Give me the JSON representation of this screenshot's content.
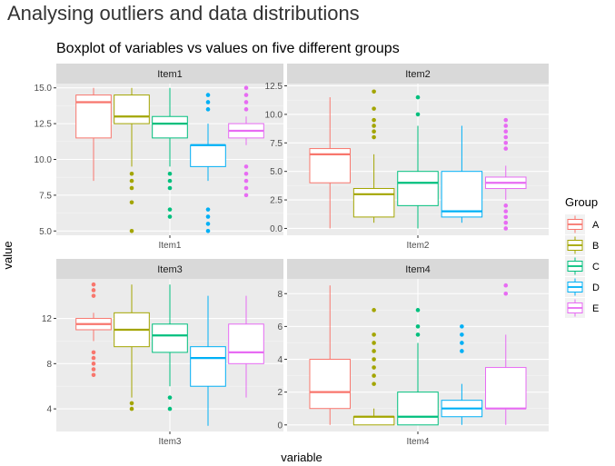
{
  "page_title": "Analysing outliers and data distributions",
  "chart_data": {
    "type": "boxplot",
    "title": "Boxplot of variables vs values on five different groups",
    "xlabel": "variable",
    "ylabel": "value",
    "legend": {
      "title": "Group",
      "placement": "right",
      "entries": [
        "A",
        "B",
        "C",
        "D",
        "E"
      ]
    },
    "colors": {
      "A": "#F8766D",
      "B": "#A3A500",
      "C": "#00BF7D",
      "D": "#00B0F6",
      "E": "#E76BF3"
    },
    "facets": [
      {
        "strip": "Item1",
        "x_tick": "Item1",
        "ylim": [
          4.7,
          15.3
        ],
        "y_ticks": [
          5.0,
          7.5,
          10.0,
          12.5,
          15.0
        ],
        "y_tick_labels": [
          "5.0",
          "7.5",
          "10.0",
          "12.5",
          "15.0"
        ],
        "boxes": [
          {
            "group": "A",
            "min": 8.5,
            "q1": 11.5,
            "median": 14.0,
            "q3": 14.5,
            "max": 15.0,
            "outliers": []
          },
          {
            "group": "B",
            "min": 9.5,
            "q1": 12.5,
            "median": 13.0,
            "q3": 14.5,
            "max": 15.0,
            "outliers": [
              9.0,
              8.5,
              8.0,
              7.0,
              5.0
            ]
          },
          {
            "group": "C",
            "min": 9.5,
            "q1": 11.5,
            "median": 12.5,
            "q3": 13.0,
            "max": 15.0,
            "outliers": [
              9.0,
              8.5,
              8.0,
              6.5,
              6.0
            ]
          },
          {
            "group": "D",
            "min": 8.5,
            "q1": 9.5,
            "median": 11.0,
            "q3": 11.0,
            "max": 12.5,
            "outliers": [
              14.5,
              14.0,
              13.5,
              6.5,
              6.0,
              5.5,
              5.0
            ]
          },
          {
            "group": "E",
            "min": 11.0,
            "q1": 11.5,
            "median": 12.0,
            "q3": 12.5,
            "max": 13.0,
            "outliers": [
              15.0,
              14.5,
              14.0,
              13.5,
              9.5,
              9.0,
              8.5,
              8.0,
              7.5
            ]
          }
        ]
      },
      {
        "strip": "Item2",
        "x_tick": "Item2",
        "ylim": [
          -0.6,
          12.7
        ],
        "y_ticks": [
          0.0,
          2.5,
          5.0,
          7.5,
          10.0,
          12.5
        ],
        "y_tick_labels": [
          "0.0",
          "2.5",
          "5.0",
          "7.5",
          "10.0",
          "12.5"
        ],
        "boxes": [
          {
            "group": "A",
            "min": 0.0,
            "q1": 4.0,
            "median": 6.5,
            "q3": 7.0,
            "max": 11.5,
            "outliers": []
          },
          {
            "group": "B",
            "min": 0.5,
            "q1": 1.0,
            "median": 3.0,
            "q3": 3.5,
            "max": 6.5,
            "outliers": [
              12.0,
              10.5,
              9.5,
              9.0,
              8.5,
              8.0
            ]
          },
          {
            "group": "C",
            "min": 0.0,
            "q1": 2.0,
            "median": 4.0,
            "q3": 5.0,
            "max": 9.0,
            "outliers": [
              11.5,
              10.0
            ]
          },
          {
            "group": "D",
            "min": 0.5,
            "q1": 1.0,
            "median": 1.5,
            "q3": 5.0,
            "max": 9.0,
            "outliers": []
          },
          {
            "group": "E",
            "min": 2.5,
            "q1": 3.5,
            "median": 4.0,
            "q3": 4.5,
            "max": 5.5,
            "outliers": [
              9.5,
              9.0,
              8.5,
              8.0,
              7.5,
              7.0,
              2.0,
              1.5,
              1.0,
              0.5,
              0.0
            ]
          }
        ]
      },
      {
        "strip": "Item3",
        "x_tick": "Item3",
        "ylim": [
          2.0,
          15.5
        ],
        "y_ticks": [
          4,
          8,
          12
        ],
        "y_tick_labels": [
          "4",
          "8",
          "12"
        ],
        "boxes": [
          {
            "group": "A",
            "min": 10.0,
            "q1": 11.0,
            "median": 11.5,
            "q3": 12.0,
            "max": 12.5,
            "outliers": [
              15.0,
              14.5,
              14.0,
              9.0,
              8.5,
              8.0,
              7.5,
              7.0
            ]
          },
          {
            "group": "B",
            "min": 5.0,
            "q1": 9.5,
            "median": 11.0,
            "q3": 12.5,
            "max": 15.0,
            "outliers": [
              4.5,
              4.0
            ]
          },
          {
            "group": "C",
            "min": 6.0,
            "q1": 9.0,
            "median": 10.5,
            "q3": 11.5,
            "max": 15.0,
            "outliers": [
              5.0,
              4.0
            ]
          },
          {
            "group": "D",
            "min": 2.5,
            "q1": 6.0,
            "median": 8.5,
            "q3": 9.5,
            "max": 14.0,
            "outliers": []
          },
          {
            "group": "E",
            "min": 5.0,
            "q1": 8.0,
            "median": 9.0,
            "q3": 11.5,
            "max": 14.0,
            "outliers": []
          }
        ]
      },
      {
        "strip": "Item4",
        "x_tick": "Item4",
        "ylim": [
          -0.4,
          8.9
        ],
        "y_ticks": [
          0,
          2,
          4,
          6,
          8
        ],
        "y_tick_labels": [
          "0",
          "2",
          "4",
          "6",
          "8"
        ],
        "boxes": [
          {
            "group": "A",
            "min": 0.0,
            "q1": 1.0,
            "median": 2.0,
            "q3": 4.0,
            "max": 8.5,
            "outliers": []
          },
          {
            "group": "B",
            "min": 0.0,
            "q1": 0.0,
            "median": 0.5,
            "q3": 0.5,
            "max": 1.0,
            "outliers": [
              7.0,
              5.5,
              5.0,
              4.5,
              4.0,
              3.5,
              3.0,
              2.5
            ]
          },
          {
            "group": "C",
            "min": 0.0,
            "q1": 0.0,
            "median": 0.5,
            "q3": 2.0,
            "max": 5.0,
            "outliers": [
              7.0,
              6.0,
              5.5
            ]
          },
          {
            "group": "D",
            "min": 0.0,
            "q1": 0.5,
            "median": 1.0,
            "q3": 1.5,
            "max": 2.5,
            "outliers": [
              6.0,
              5.5,
              5.0,
              4.5
            ]
          },
          {
            "group": "E",
            "min": 0.0,
            "q1": 1.0,
            "median": 1.0,
            "q3": 3.5,
            "max": 5.5,
            "outliers": [
              8.5,
              8.0
            ]
          }
        ]
      }
    ]
  }
}
